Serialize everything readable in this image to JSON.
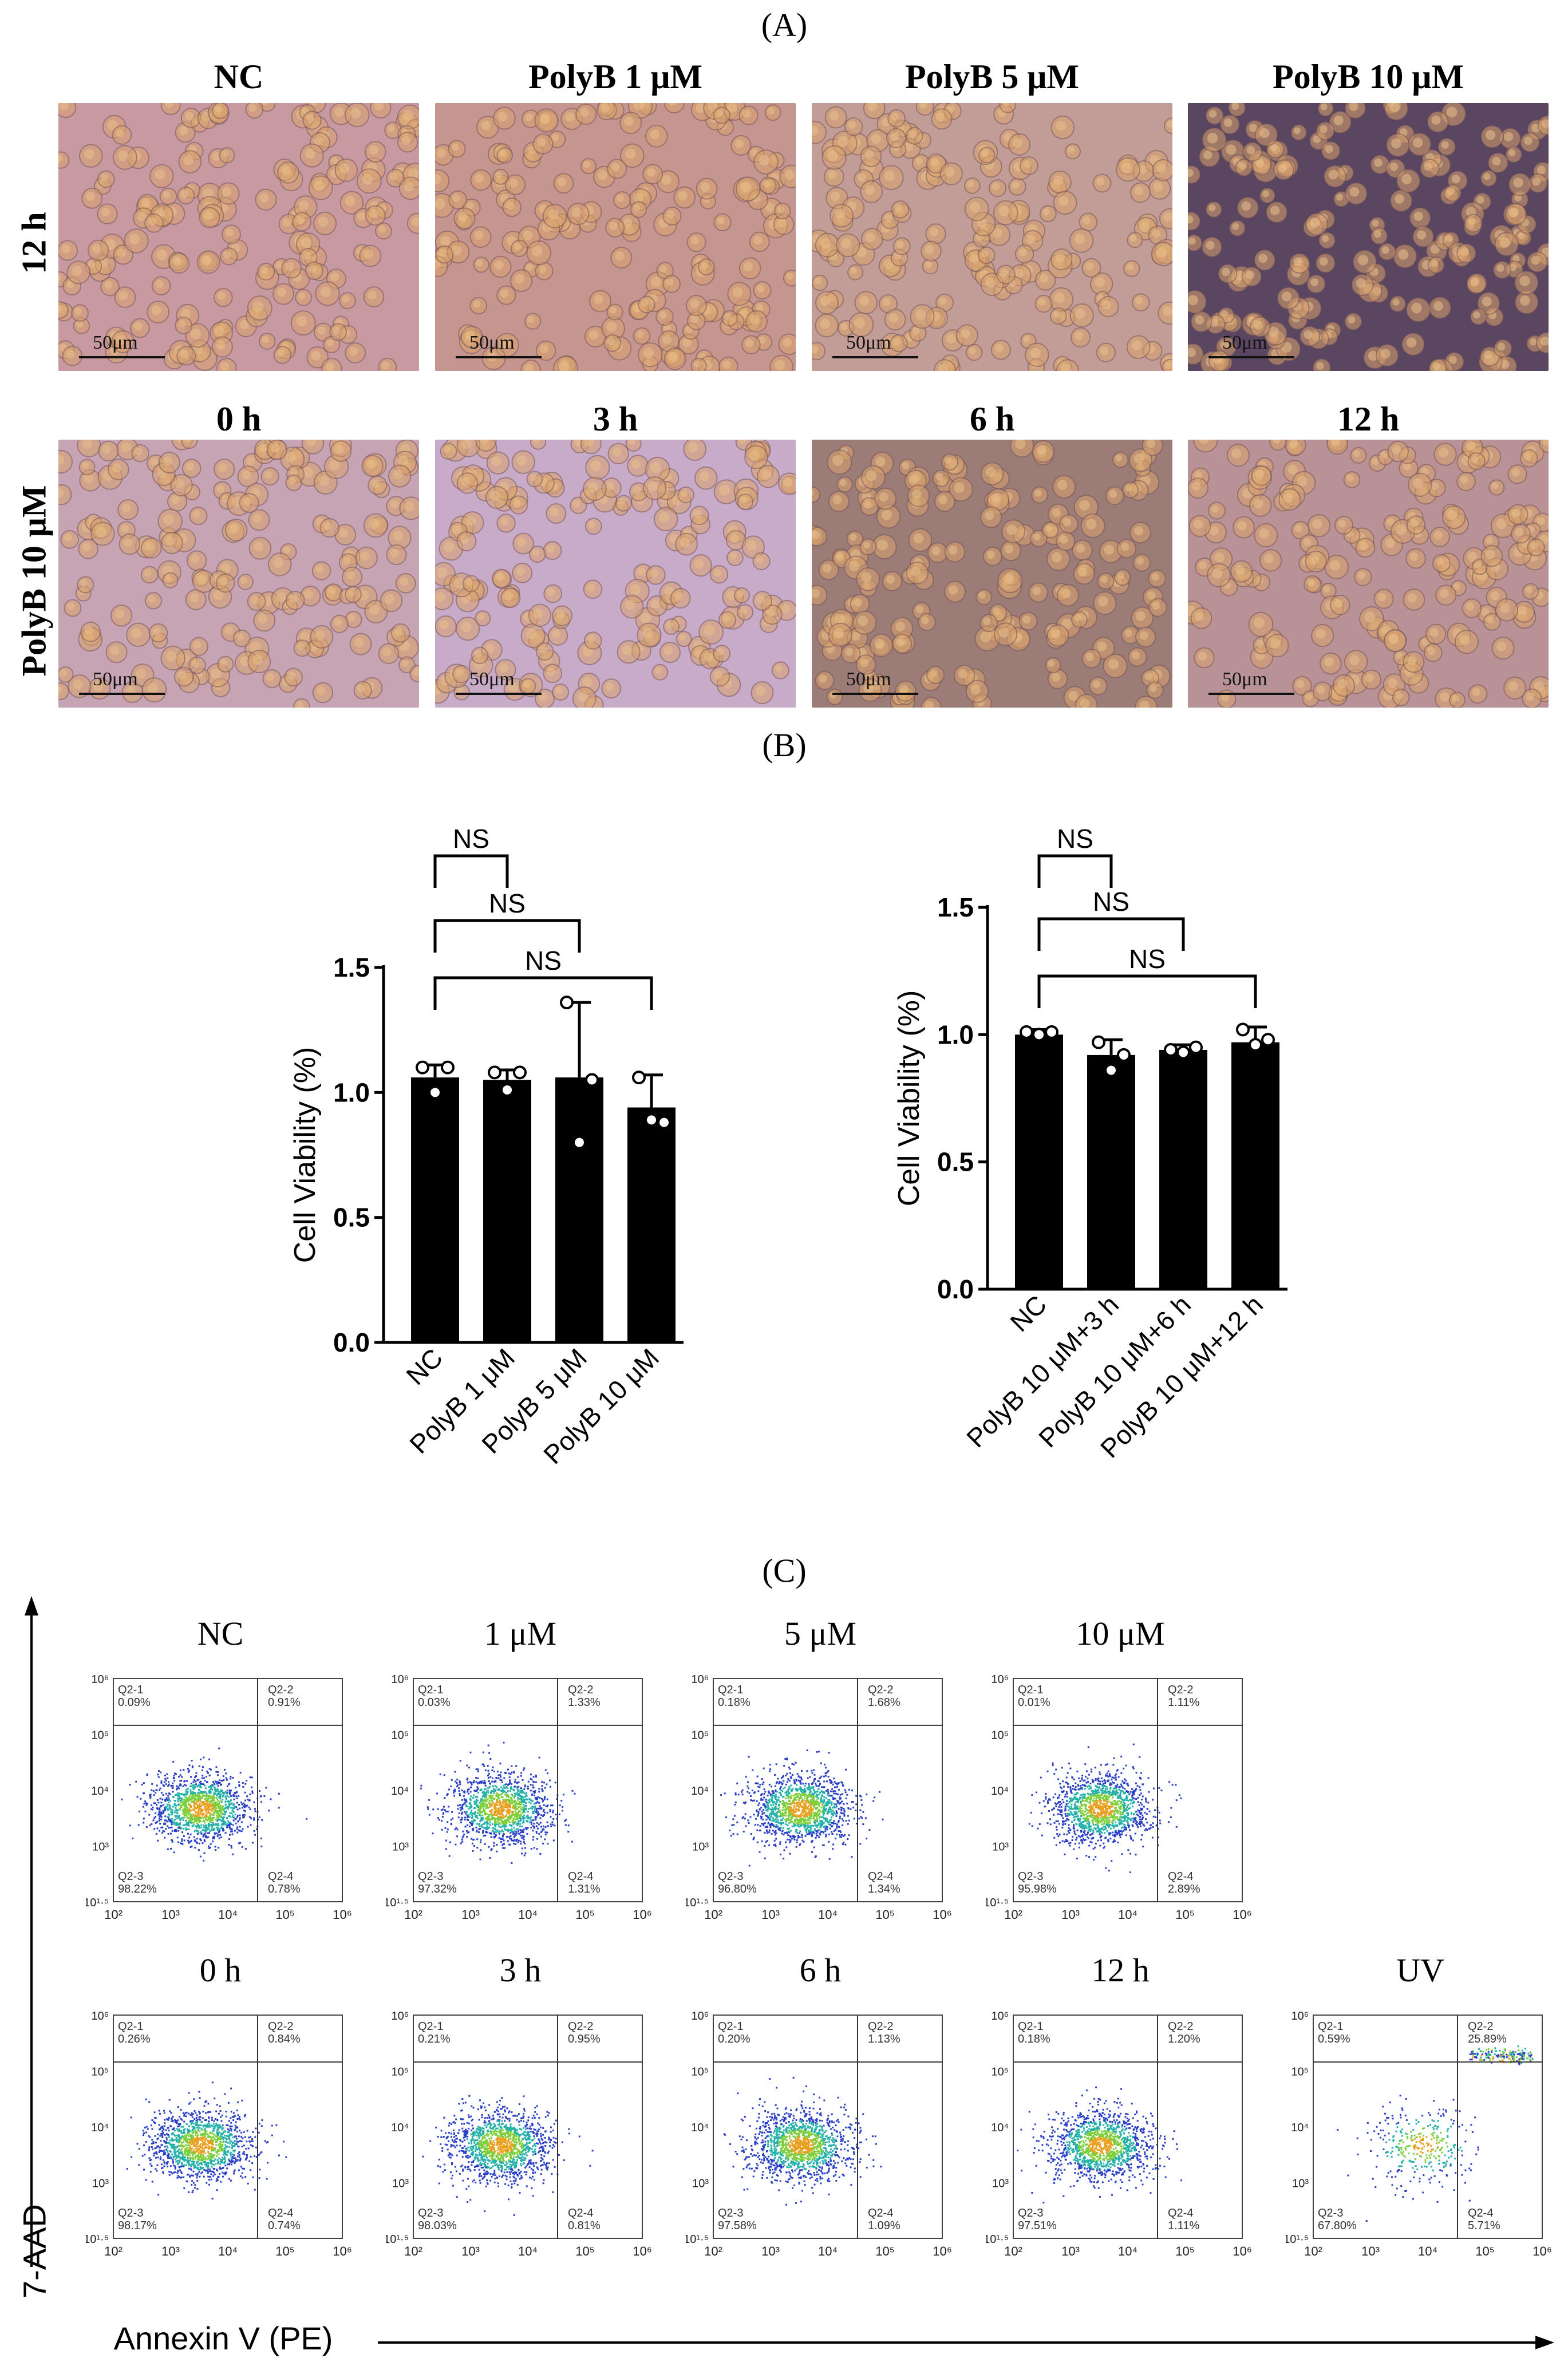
{
  "panel_labels": {
    "a": "(A)",
    "b": "(B)",
    "c": "(C)"
  },
  "microscopy": {
    "row1_label": "12 h",
    "row2_label": "PolyB 10 μM",
    "row1": [
      {
        "title": "NC",
        "scale": "50μm",
        "bg": "#c79aa2"
      },
      {
        "title": "PolyB 1 μM",
        "scale": "50μm",
        "bg": "#c59690"
      },
      {
        "title": "PolyB 5 μM",
        "scale": "50μm",
        "bg": "#c29d98"
      },
      {
        "title": "PolyB 10 μM",
        "scale": "50μm",
        "bg": "#5a4660"
      }
    ],
    "row2": [
      {
        "title": "0 h",
        "scale": "50μm",
        "bg": "#c6a4b4"
      },
      {
        "title": "3 h",
        "scale": "50μm",
        "bg": "#c8abc8"
      },
      {
        "title": "6 h",
        "scale": "50μm",
        "bg": "#9b7c76"
      },
      {
        "title": "12 h",
        "scale": "50μm",
        "bg": "#b89294"
      }
    ]
  },
  "chart_data": [
    {
      "type": "bar",
      "categories": [
        "NC",
        "PolyB 1 μM",
        "PolyB 5 μM",
        "PolyB 10 μM"
      ],
      "values": [
        1.06,
        1.05,
        1.06,
        0.94
      ],
      "errors": [
        0.05,
        0.04,
        0.3,
        0.13
      ],
      "points": [
        [
          1.1,
          1.0,
          1.1
        ],
        [
          1.08,
          1.01,
          1.08
        ],
        [
          1.36,
          0.8,
          1.05
        ],
        [
          1.06,
          0.89,
          0.88
        ]
      ],
      "ylabel": "Cell Viability (%)",
      "ylim": [
        0,
        1.5
      ],
      "yticks": [
        "0.0",
        "0.5",
        "1.0",
        "1.5"
      ],
      "comparisons": [
        {
          "from": "NC",
          "to": "PolyB 1 μM",
          "label": "NS"
        },
        {
          "from": "NC",
          "to": "PolyB 5 μM",
          "label": "NS"
        },
        {
          "from": "NC",
          "to": "PolyB 10 μM",
          "label": "NS"
        }
      ],
      "bar_color": "#000000"
    },
    {
      "type": "bar",
      "categories": [
        "NC",
        "PolyB 10 μM+3 h",
        "PolyB 10 μM+6 h",
        "PolyB 10 μM+12 h"
      ],
      "values": [
        1.0,
        0.92,
        0.94,
        0.97
      ],
      "errors": [
        0.02,
        0.06,
        0.02,
        0.06
      ],
      "points": [
        [
          1.01,
          1.0,
          1.01
        ],
        [
          0.97,
          0.86,
          0.92
        ],
        [
          0.94,
          0.93,
          0.95
        ],
        [
          1.02,
          0.96,
          0.98
        ]
      ],
      "ylabel": "Cell Viability (%)",
      "ylim": [
        0,
        1.5
      ],
      "yticks": [
        "0.0",
        "0.5",
        "1.0",
        "1.5"
      ],
      "comparisons": [
        {
          "from": "NC",
          "to": "PolyB 10 μM+3 h",
          "label": "NS"
        },
        {
          "from": "NC",
          "to": "PolyB 10 μM+6 h",
          "label": "NS"
        },
        {
          "from": "NC",
          "to": "PolyB 10 μM+12 h",
          "label": "NS"
        }
      ],
      "bar_color": "#000000"
    }
  ],
  "flow": {
    "y_axis_label": "7-AAD",
    "x_axis_label": "Annexin V (PE)",
    "x_ticks": [
      "10²",
      "10³",
      "10⁴",
      "10⁵",
      "10⁶"
    ],
    "y_ticks": [
      "10¹·⁵",
      "10³",
      "10⁴",
      "10⁵",
      "10⁶"
    ],
    "plots": [
      {
        "title": "NC",
        "q1": "0.09%",
        "q2": "0.91%",
        "q3": "98.22%",
        "q4": "0.78%"
      },
      {
        "title": "1 μM",
        "q1": "0.03%",
        "q2": "1.33%",
        "q3": "97.32%",
        "q4": "1.31%"
      },
      {
        "title": "5 μM",
        "q1": "0.18%",
        "q2": "1.68%",
        "q3": "96.80%",
        "q4": "1.34%"
      },
      {
        "title": "10 μM",
        "q1": "0.01%",
        "q2": "1.11%",
        "q3": "95.98%",
        "q4": "2.89%"
      },
      {
        "title": "0 h",
        "q1": "0.26%",
        "q2": "0.84%",
        "q3": "98.17%",
        "q4": "0.74%"
      },
      {
        "title": "3 h",
        "q1": "0.21%",
        "q2": "0.95%",
        "q3": "98.03%",
        "q4": "0.81%"
      },
      {
        "title": "6 h",
        "q1": "0.20%",
        "q2": "1.13%",
        "q3": "97.58%",
        "q4": "1.09%"
      },
      {
        "title": "12 h",
        "q1": "0.18%",
        "q2": "1.20%",
        "q3": "97.51%",
        "q4": "1.11%"
      },
      {
        "title": "UV",
        "q1": "0.59%",
        "q2": "25.89%",
        "q3": "67.80%",
        "q4": "5.71%"
      }
    ],
    "quadrant_names": {
      "q1": "Q2-1",
      "q2": "Q2-2",
      "q3": "Q2-3",
      "q4": "Q2-4"
    }
  }
}
